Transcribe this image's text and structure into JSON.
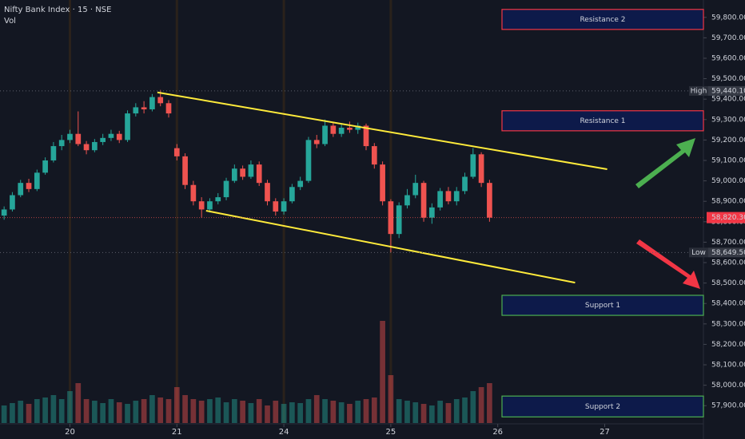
{
  "chart_data": {
    "type": "candlestick",
    "title": "Nifty Bank Index · 15 · NSE",
    "volume_title": "Vol",
    "bull_color": "#26a69a",
    "bear_color": "#ef5350",
    "xlim": [
      -8.5,
      77
    ],
    "xticks": [
      {
        "value": 0,
        "label": "20"
      },
      {
        "value": 13,
        "label": "21"
      },
      {
        "value": 26,
        "label": "24"
      },
      {
        "value": 39,
        "label": "25"
      },
      {
        "value": 52,
        "label": "26"
      },
      {
        "value": 65,
        "label": "27"
      }
    ],
    "ylim": [
      57815,
      59885
    ],
    "yticks": [
      {
        "value": 57900,
        "label": "57,900.00"
      },
      {
        "value": 58000,
        "label": "58,000.00"
      },
      {
        "value": 58100,
        "label": "58,100.00"
      },
      {
        "value": 58200,
        "label": "58,200.00"
      },
      {
        "value": 58300,
        "label": "58,300.00"
      },
      {
        "value": 58400,
        "label": "58,400.00"
      },
      {
        "value": 58500,
        "label": "58,500.00"
      },
      {
        "value": 58600,
        "label": "58,600.00"
      },
      {
        "value": 58700,
        "label": "58,700.00"
      },
      {
        "value": 58800,
        "label": "58,800.00"
      },
      {
        "value": 58900,
        "label": "58,900.00"
      },
      {
        "value": 59000,
        "label": "59,000.00"
      },
      {
        "value": 59100,
        "label": "59,100.00"
      },
      {
        "value": 59200,
        "label": "59,200.00"
      },
      {
        "value": 59300,
        "label": "59,300.00"
      },
      {
        "value": 59400,
        "label": "59,400.00"
      },
      {
        "value": 59500,
        "label": "59,500.00"
      },
      {
        "value": 59600,
        "label": "59,600.00"
      },
      {
        "value": 59700,
        "label": "59,700.00"
      },
      {
        "value": 59800,
        "label": "59,800.00"
      }
    ],
    "vlim": [
      0,
      300
    ],
    "candles": {
      "x": [
        -8,
        -7,
        -6,
        -5,
        -4,
        -3,
        -2,
        -1,
        0,
        1,
        2,
        3,
        4,
        5,
        6,
        7,
        8,
        9,
        10,
        11,
        12,
        13,
        14,
        15,
        16,
        17,
        18,
        19,
        20,
        21,
        22,
        23,
        24,
        25,
        26,
        27,
        28,
        29,
        30,
        31,
        32,
        33,
        34,
        35,
        36,
        37,
        38,
        39,
        40,
        41,
        42,
        43,
        44,
        45,
        46,
        47,
        48,
        49,
        50,
        51
      ],
      "open": [
        58830,
        58860,
        58930,
        58990,
        58960,
        59040,
        59100,
        59170,
        59200,
        59230,
        59180,
        59150,
        59190,
        59210,
        59230,
        59200,
        59330,
        59360,
        59350,
        59410,
        59380,
        59160,
        59120,
        58980,
        58900,
        58860,
        58900,
        58920,
        59000,
        59060,
        59020,
        59080,
        58990,
        58900,
        58850,
        58900,
        58970,
        59000,
        59200,
        59180,
        59270,
        59230,
        59260,
        59250,
        59270,
        59170,
        59080,
        58900,
        58740,
        58880,
        58930,
        58990,
        58820,
        58870,
        58950,
        58900,
        58950,
        59020,
        59130,
        58990
      ],
      "high": [
        58875,
        58945,
        59005,
        59010,
        59055,
        59115,
        59190,
        59225,
        59250,
        59340,
        59195,
        59205,
        59230,
        59250,
        59245,
        59345,
        59380,
        59390,
        59425,
        59445,
        59395,
        59180,
        59135,
        59000,
        58920,
        58915,
        58940,
        59015,
        59080,
        59075,
        59100,
        59095,
        59005,
        58915,
        58915,
        58985,
        59020,
        59215,
        59225,
        59300,
        59285,
        59280,
        59290,
        59285,
        59280,
        59185,
        59095,
        58910,
        58895,
        58960,
        59030,
        59000,
        58890,
        58965,
        58970,
        58970,
        59040,
        59160,
        59140,
        59005
      ],
      "low": [
        58810,
        58850,
        58920,
        58945,
        58950,
        59030,
        59090,
        59150,
        59185,
        59170,
        59130,
        59140,
        59175,
        59195,
        59185,
        59190,
        59315,
        59330,
        59340,
        59365,
        59310,
        59100,
        58960,
        58880,
        58820,
        58845,
        58885,
        58905,
        58990,
        59005,
        59010,
        58975,
        58880,
        58830,
        58835,
        58890,
        58955,
        58990,
        59160,
        59170,
        59215,
        59215,
        59235,
        59230,
        59150,
        59060,
        58880,
        58650,
        58720,
        58865,
        58915,
        58800,
        58790,
        58855,
        58885,
        58880,
        58935,
        59010,
        58970,
        58800
      ],
      "close": [
        58860,
        58930,
        58990,
        58960,
        59040,
        59100,
        59170,
        59200,
        59230,
        59180,
        59150,
        59190,
        59210,
        59230,
        59200,
        59330,
        59360,
        59350,
        59410,
        59380,
        59330,
        59120,
        58980,
        58900,
        58860,
        58900,
        58920,
        59000,
        59060,
        59020,
        59080,
        58990,
        58900,
        58850,
        58900,
        58970,
        59000,
        59200,
        59180,
        59270,
        59230,
        59260,
        59250,
        59270,
        59170,
        59080,
        58900,
        58740,
        58880,
        58930,
        58990,
        58820,
        58870,
        58950,
        58900,
        58950,
        59020,
        59130,
        58990,
        58820
      ],
      "volume": [
        22,
        25,
        28,
        24,
        30,
        32,
        35,
        30,
        40,
        50,
        30,
        28,
        25,
        30,
        26,
        24,
        28,
        30,
        35,
        32,
        30,
        45,
        35,
        30,
        28,
        30,
        32,
        26,
        30,
        28,
        25,
        30,
        22,
        28,
        24,
        26,
        25,
        30,
        35,
        30,
        28,
        26,
        24,
        28,
        30,
        32,
        128,
        60,
        30,
        28,
        26,
        24,
        22,
        28,
        25,
        30,
        32,
        40,
        45,
        50
      ]
    },
    "zones": [
      {
        "label": "Resistance 2",
        "top": 59839,
        "bottom": 59741,
        "color": "#f23645"
      },
      {
        "label": "Resistance 1",
        "top": 59343,
        "bottom": 59245,
        "color": "#f23645"
      },
      {
        "label": "Support 1",
        "top": 58440,
        "bottom": 58342,
        "color": "#4caf50"
      },
      {
        "label": "Support 2",
        "top": 57947,
        "bottom": 57845,
        "color": "#4caf50"
      }
    ],
    "trendlines": [
      {
        "x": [
          10.63,
          65.3
        ],
        "y": [
          59433,
          59057
        ],
        "color": "#ffeb3b"
      },
      {
        "x": [
          16.55,
          61.4
        ],
        "y": [
          58854,
          58502
        ],
        "color": "#ffeb3b"
      }
    ],
    "high": {
      "label": "High",
      "value": 59440.1,
      "value_label": "59,440.10"
    },
    "low": {
      "label": "Low",
      "value": 58649.5,
      "value_label": "58,649.50"
    },
    "last": {
      "value": 58820.3,
      "value_label": "58,820.30"
    }
  }
}
